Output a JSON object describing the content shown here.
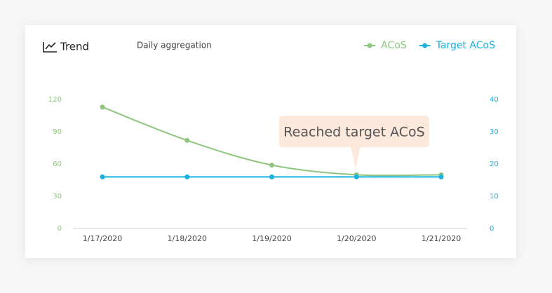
{
  "chart_data": {
    "type": "line",
    "title": "Trend",
    "subtitle": "Daily aggregation",
    "annotation": "Reached target ACoS",
    "categories": [
      "1/17/2020",
      "1/18/2020",
      "1/19/2020",
      "1/20/2020",
      "1/21/2020"
    ],
    "series": [
      {
        "name": "ACoS",
        "color": "#8dc67f",
        "values": [
          113,
          82,
          59,
          50,
          50
        ]
      },
      {
        "name": "Target ACoS",
        "color": "#1ab0e0",
        "axis": "y2",
        "values": [
          16,
          16,
          16,
          16,
          16
        ]
      }
    ],
    "ylim": [
      0,
      120
    ],
    "yticks": [
      0,
      30,
      60,
      90,
      120
    ],
    "y2lim": [
      0,
      40
    ],
    "y2ticks": [
      0,
      10,
      20,
      30,
      40
    ],
    "legend": "top-right"
  }
}
